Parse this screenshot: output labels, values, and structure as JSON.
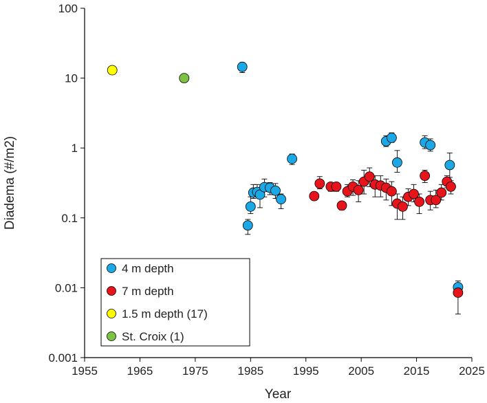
{
  "chart_data": {
    "type": "scatter",
    "xlabel": "Year",
    "ylabel": "Diadema (#/m2)",
    "xlim": [
      1955,
      2025
    ],
    "ylim": [
      0.001,
      100
    ],
    "yscale": "log",
    "grid": false,
    "legend_position": "bottom-left",
    "x_ticks": [
      "1955",
      "1965",
      "1975",
      "1985",
      "1995",
      "2005",
      "2015",
      "2025"
    ],
    "y_ticks": [
      "0.001",
      "0.01",
      "0.1",
      "1",
      "10",
      "100"
    ],
    "series": [
      {
        "name": "4 m depth",
        "color": "#1CA7E5",
        "points": [
          {
            "x": 1983.5,
            "y": 14.5,
            "lo": 12.0,
            "hi": 16.5
          },
          {
            "x": 1984.5,
            "y": 0.078,
            "lo": 0.058,
            "hi": 0.095
          },
          {
            "x": 1985.0,
            "y": 0.145,
            "lo": 0.115,
            "hi": 0.2
          },
          {
            "x": 1985.5,
            "y": 0.23,
            "lo": 0.19,
            "hi": 0.3
          },
          {
            "x": 1986.2,
            "y": 0.235,
            "lo": 0.2,
            "hi": 0.3
          },
          {
            "x": 1986.7,
            "y": 0.215,
            "lo": 0.14,
            "hi": 0.27
          },
          {
            "x": 1987.5,
            "y": 0.275,
            "lo": 0.2,
            "hi": 0.36
          },
          {
            "x": 1988.5,
            "y": 0.27,
            "lo": 0.215,
            "hi": 0.32
          },
          {
            "x": 1989.5,
            "y": 0.245,
            "lo": 0.19,
            "hi": 0.31
          },
          {
            "x": 1990.5,
            "y": 0.185,
            "lo": 0.135,
            "hi": 0.22
          },
          {
            "x": 1992.5,
            "y": 0.7,
            "lo": 0.58,
            "hi": 0.82
          },
          {
            "x": 2009.5,
            "y": 1.25,
            "lo": 1.05,
            "hi": 1.5
          },
          {
            "x": 2010.5,
            "y": 1.4,
            "lo": 1.2,
            "hi": 1.65
          },
          {
            "x": 2011.5,
            "y": 0.62,
            "lo": 0.45,
            "hi": 0.92
          },
          {
            "x": 2016.5,
            "y": 1.2,
            "lo": 0.98,
            "hi": 1.5
          },
          {
            "x": 2017.5,
            "y": 1.1,
            "lo": 0.9,
            "hi": 1.35
          },
          {
            "x": 2021.0,
            "y": 0.57,
            "lo": 0.38,
            "hi": 0.85
          },
          {
            "x": 2022.5,
            "y": 0.0102,
            "lo": 0.009,
            "hi": 0.0125
          }
        ]
      },
      {
        "name": "7 m depth",
        "color": "#E8141B",
        "points": [
          {
            "x": 1996.5,
            "y": 0.205,
            "lo": 0.18,
            "hi": 0.23
          },
          {
            "x": 1997.5,
            "y": 0.31,
            "lo": 0.26,
            "hi": 0.39
          },
          {
            "x": 1999.5,
            "y": 0.28,
            "lo": 0.24,
            "hi": 0.32
          },
          {
            "x": 2000.5,
            "y": 0.28,
            "lo": 0.24,
            "hi": 0.32
          },
          {
            "x": 2001.5,
            "y": 0.15,
            "lo": 0.13,
            "hi": 0.17
          },
          {
            "x": 2002.5,
            "y": 0.24,
            "lo": 0.2,
            "hi": 0.3
          },
          {
            "x": 2003.5,
            "y": 0.28,
            "lo": 0.21,
            "hi": 0.35
          },
          {
            "x": 2004.5,
            "y": 0.25,
            "lo": 0.17,
            "hi": 0.34
          },
          {
            "x": 2005.5,
            "y": 0.33,
            "lo": 0.22,
            "hi": 0.48
          },
          {
            "x": 2006.5,
            "y": 0.39,
            "lo": 0.28,
            "hi": 0.52
          },
          {
            "x": 2007.5,
            "y": 0.3,
            "lo": 0.2,
            "hi": 0.4
          },
          {
            "x": 2008.5,
            "y": 0.29,
            "lo": 0.2,
            "hi": 0.4
          },
          {
            "x": 2009.5,
            "y": 0.27,
            "lo": 0.18,
            "hi": 0.36
          },
          {
            "x": 2010.5,
            "y": 0.24,
            "lo": 0.15,
            "hi": 0.33
          },
          {
            "x": 2011.5,
            "y": 0.16,
            "lo": 0.095,
            "hi": 0.22
          },
          {
            "x": 2012.5,
            "y": 0.145,
            "lo": 0.095,
            "hi": 0.2
          },
          {
            "x": 2013.5,
            "y": 0.2,
            "lo": 0.15,
            "hi": 0.26
          },
          {
            "x": 2014.5,
            "y": 0.22,
            "lo": 0.17,
            "hi": 0.3
          },
          {
            "x": 2015.5,
            "y": 0.17,
            "lo": 0.115,
            "hi": 0.22
          },
          {
            "x": 2016.5,
            "y": 0.4,
            "lo": 0.32,
            "hi": 0.48
          },
          {
            "x": 2017.5,
            "y": 0.18,
            "lo": 0.13,
            "hi": 0.24
          },
          {
            "x": 2018.5,
            "y": 0.18,
            "lo": 0.14,
            "hi": 0.25
          },
          {
            "x": 2019.5,
            "y": 0.23,
            "lo": 0.18,
            "hi": 0.3
          },
          {
            "x": 2020.5,
            "y": 0.33,
            "lo": 0.27,
            "hi": 0.4
          },
          {
            "x": 2021.2,
            "y": 0.28,
            "lo": 0.22,
            "hi": 0.34
          },
          {
            "x": 2022.5,
            "y": 0.0085,
            "lo": 0.0042,
            "hi": 0.0115
          }
        ]
      },
      {
        "name": "1.5 m depth (17)",
        "color": "#FFFF00",
        "points": [
          {
            "x": 1960,
            "y": 13
          }
        ]
      },
      {
        "name": "St. Croix (1)",
        "color": "#7DC242",
        "points": [
          {
            "x": 1973,
            "y": 10
          }
        ]
      }
    ]
  }
}
